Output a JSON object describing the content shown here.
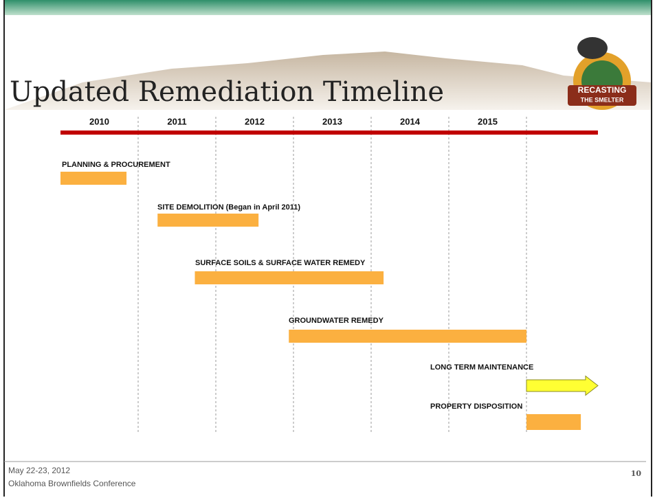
{
  "chart_data": {
    "type": "timeline",
    "title": "Updated Remediation Timeline",
    "categories": [
      "2010",
      "2011",
      "2012",
      "2013",
      "2014",
      "2015"
    ],
    "xlim": [
      2010,
      2016.92
    ],
    "tasks": [
      {
        "name": "PLANNING & PROCUREMENT",
        "start": 2010,
        "end": 2010.85,
        "color": "#fbb040",
        "shape": "bar"
      },
      {
        "name": "SITE DEMOLITION (Began in April 2011)",
        "start": 2011.25,
        "end": 2012.55,
        "color": "#fbb040",
        "shape": "bar"
      },
      {
        "name": "SURFACE SOILS & SURFACE WATER REMEDY",
        "start": 2011.73,
        "end": 2014.16,
        "color": "#fbb040",
        "shape": "bar"
      },
      {
        "name": "GROUNDWATER REMEDY",
        "start": 2012.94,
        "end": 2016.0,
        "color": "#fbb040",
        "shape": "bar"
      },
      {
        "name": "LONG TERM MAINTENANCE",
        "start": 2016.0,
        "end": 2016.92,
        "color": "#ffff33",
        "shape": "arrow"
      },
      {
        "name": "PROPERTY DISPOSITION",
        "start": 2016.0,
        "end": 2016.7,
        "color": "#fbb040",
        "shape": "bar"
      }
    ]
  },
  "logo": {
    "line1": "RECASTING",
    "line2": "THE SMELTER"
  },
  "footer": {
    "date": "May 22-23, 2012",
    "event": "Oklahoma Brownfields Conference",
    "page": "10"
  }
}
